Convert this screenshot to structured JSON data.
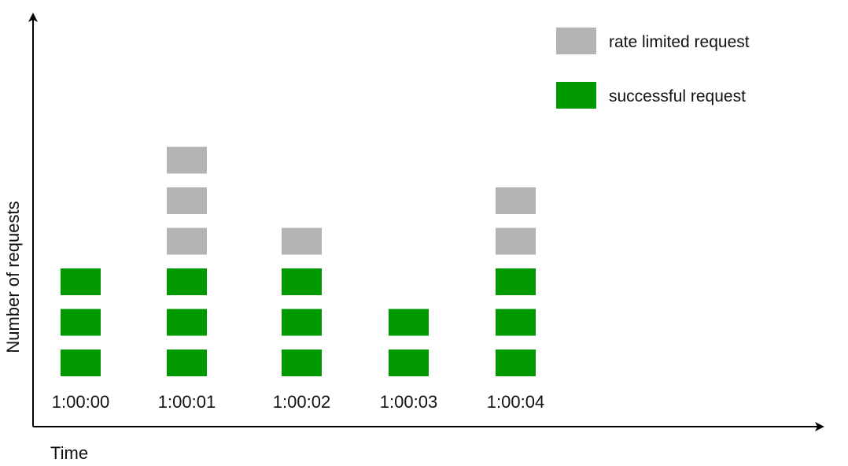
{
  "chart_data": {
    "type": "bar",
    "stacked": true,
    "categories": [
      "1:00:00",
      "1:00:01",
      "1:00:02",
      "1:00:03",
      "1:00:04"
    ],
    "series": [
      {
        "name": "successful request",
        "values": [
          3,
          3,
          3,
          2,
          3
        ],
        "color": "#009900"
      },
      {
        "name": "rate limited request",
        "values": [
          0,
          3,
          1,
          0,
          2
        ],
        "color": "#b3b3b3"
      }
    ],
    "xlabel": "Time",
    "ylabel": "Number of requests",
    "grid": false,
    "legend_position": "top-right"
  }
}
